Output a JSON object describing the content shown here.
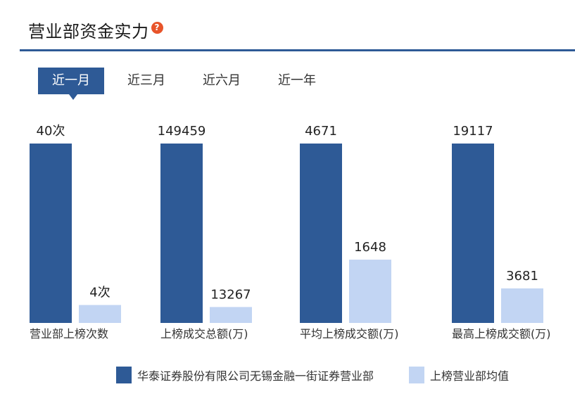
{
  "header": {
    "title": "营业部资金实力",
    "help_icon": "question-icon"
  },
  "tabs": [
    {
      "label": "近一月",
      "active": true
    },
    {
      "label": "近三月",
      "active": false
    },
    {
      "label": "近六月",
      "active": false
    },
    {
      "label": "近一年",
      "active": false
    }
  ],
  "colors": {
    "primary": "#2e5a96",
    "secondary": "#c2d5f3",
    "accent": "#e8542a"
  },
  "chart_data": {
    "type": "bar",
    "categories": [
      "营业部上榜次数",
      "上榜成交总额(万)",
      "平均上榜成交额(万)",
      "最高上榜成交额(万)"
    ],
    "series": [
      {
        "name": "华泰证券股份有限公司无锡金融一街证券营业部",
        "values": [
          40,
          149459,
          4671,
          19117
        ],
        "labels": [
          "40次",
          "149459",
          "4671",
          "19117"
        ]
      },
      {
        "name": "上榜营业部均值",
        "values": [
          4,
          13267,
          1648,
          3681
        ],
        "labels": [
          "4次",
          "13267",
          "1648",
          "3681"
        ]
      }
    ],
    "note": "each category scaled independently to its own maximum",
    "legend_position": "bottom"
  }
}
